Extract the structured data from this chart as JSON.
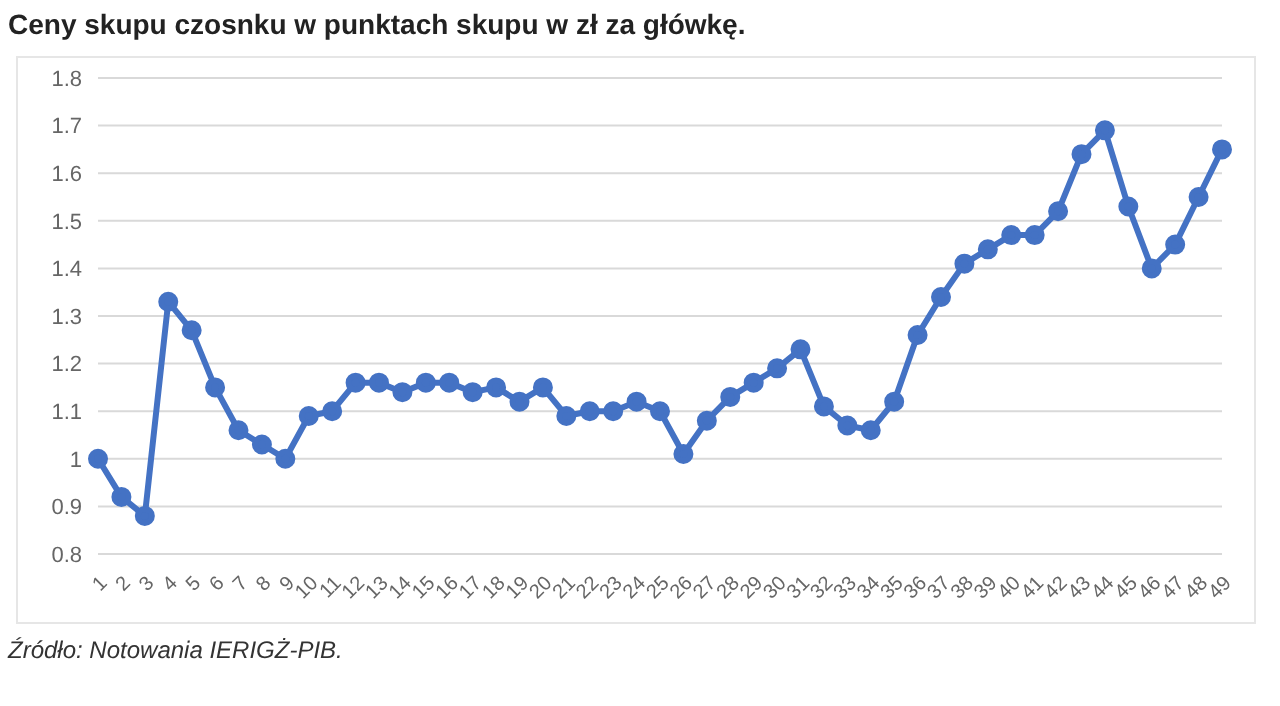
{
  "chart_data": {
    "type": "line",
    "title": "Ceny skupu czosnku w punktach skupu w zł za główkę.",
    "categories": [
      "1",
      "2",
      "3",
      "4",
      "5",
      "6",
      "7",
      "8",
      "9",
      "10",
      "11",
      "12",
      "13",
      "14",
      "15",
      "16",
      "17",
      "18",
      "19",
      "20",
      "21",
      "22",
      "23",
      "24",
      "25",
      "26",
      "27",
      "28",
      "29",
      "30",
      "31",
      "32",
      "33",
      "34",
      "35",
      "36",
      "37",
      "38",
      "39",
      "40",
      "41",
      "42",
      "43",
      "44",
      "45",
      "46",
      "47",
      "48",
      "49"
    ],
    "series": [
      {
        "color": "#4472c4",
        "values": [
          1.0,
          0.92,
          0.88,
          1.33,
          1.27,
          1.15,
          1.06,
          1.03,
          1.0,
          1.09,
          1.1,
          1.16,
          1.16,
          1.14,
          1.16,
          1.16,
          1.14,
          1.15,
          1.12,
          1.15,
          1.09,
          1.1,
          1.1,
          1.12,
          1.1,
          1.01,
          1.08,
          1.13,
          1.16,
          1.19,
          1.23,
          1.11,
          1.07,
          1.06,
          1.12,
          1.26,
          1.34,
          1.41,
          1.44,
          1.47,
          1.47,
          1.52,
          1.64,
          1.69,
          1.53,
          1.4,
          1.45,
          1.55,
          1.65
        ]
      }
    ],
    "ylim": [
      0.8,
      1.8
    ],
    "yticks": [
      0.8,
      0.9,
      1,
      1.1,
      1.2,
      1.3,
      1.4,
      1.5,
      1.6,
      1.7,
      1.8
    ],
    "grid": "y",
    "marker": "circle",
    "line_style": "solid",
    "annotations": [
      "Źródło: Notowania IERIGŻ-PIB."
    ]
  }
}
